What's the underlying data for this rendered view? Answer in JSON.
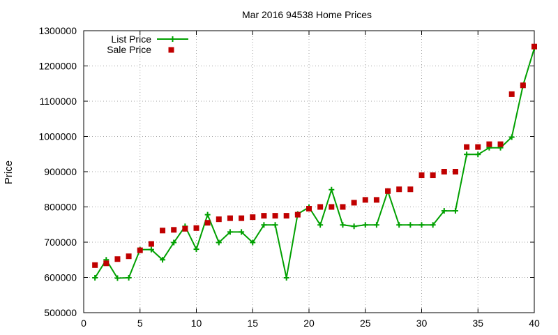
{
  "chart_data": {
    "type": "line",
    "title": "Mar 2016 94538 Home Prices",
    "xlabel": "",
    "ylabel": "Price",
    "xlim": [
      0,
      40
    ],
    "ylim": [
      500000,
      1300000
    ],
    "x_ticks": [
      "0",
      "5",
      "10",
      "15",
      "20",
      "25",
      "30",
      "35",
      "40"
    ],
    "y_ticks": [
      "500000",
      "600000",
      "700000",
      "800000",
      "900000",
      "1000000",
      "1100000",
      "1200000",
      "1300000"
    ],
    "grid": true,
    "legend_position": "top-left",
    "x": [
      1,
      2,
      3,
      4,
      5,
      6,
      7,
      8,
      9,
      10,
      11,
      12,
      13,
      14,
      15,
      16,
      17,
      18,
      19,
      20,
      21,
      22,
      23,
      24,
      25,
      26,
      27,
      28,
      29,
      30,
      31,
      32,
      33,
      34,
      35,
      36,
      37,
      38,
      39,
      40
    ],
    "series": [
      {
        "name": "List Price",
        "style": "linespoints",
        "color": "#00a000",
        "values": [
          599000,
          650000,
          598000,
          599000,
          679000,
          679000,
          650000,
          699000,
          745000,
          680000,
          778000,
          699000,
          729000,
          729000,
          699000,
          749000,
          749000,
          599000,
          780000,
          799000,
          749000,
          849000,
          749000,
          745000,
          749000,
          749000,
          845000,
          749000,
          749000,
          749000,
          749000,
          789000,
          789000,
          949000,
          949000,
          968000,
          968000,
          998000,
          1145000,
          1250000
        ]
      },
      {
        "name": "Sale Price",
        "style": "points",
        "color": "#c00000",
        "values": [
          635000,
          640000,
          652000,
          660000,
          677000,
          695000,
          733000,
          735000,
          738000,
          740000,
          755000,
          765000,
          768000,
          768000,
          771000,
          775000,
          775000,
          775000,
          778000,
          795000,
          800000,
          800000,
          800000,
          812000,
          820000,
          820000,
          845000,
          850000,
          850000,
          890000,
          890000,
          900000,
          900000,
          970000,
          970000,
          978000,
          978000,
          1120000,
          1145000,
          1255000
        ]
      }
    ]
  }
}
